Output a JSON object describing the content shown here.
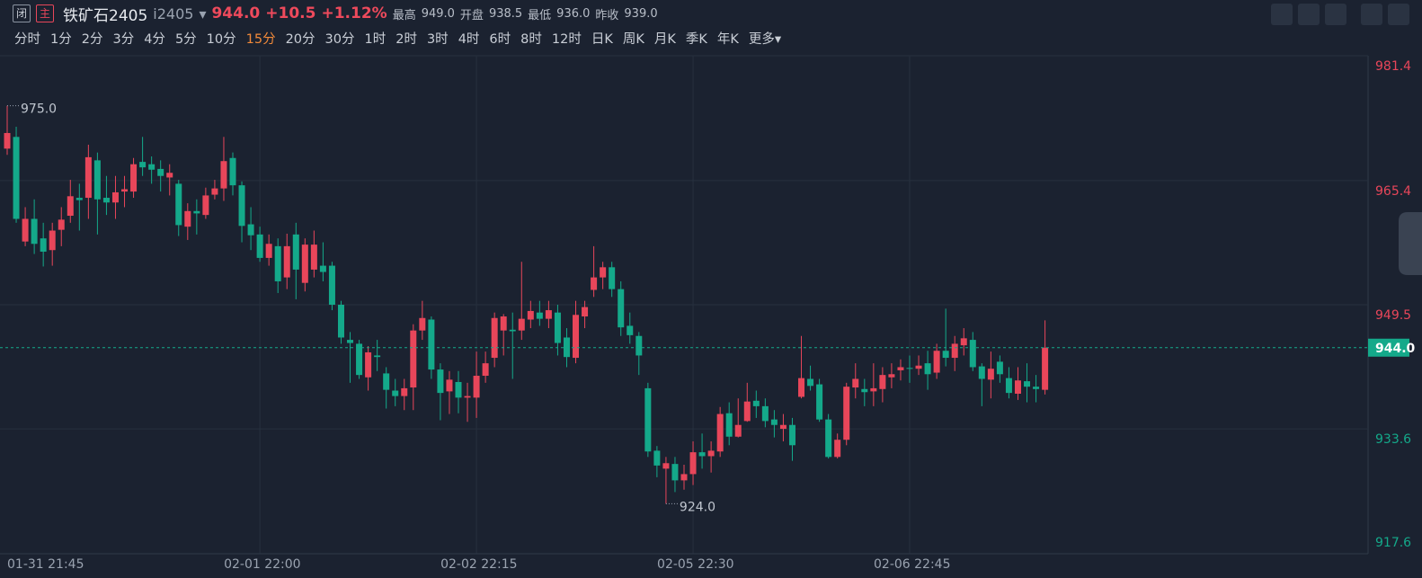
{
  "header": {
    "closed_tag": "闭",
    "main_tag": "主",
    "name": "铁矿石2405",
    "code": "i2405",
    "last": "944.0",
    "change": "+10.5",
    "change_pct": "+1.12%",
    "high_label": "最高",
    "high": "949.0",
    "open_label": "开盘",
    "open": "938.5",
    "low_label": "最低",
    "low": "936.0",
    "prev_label": "昨收",
    "prev": "939.0"
  },
  "periods": [
    "分时",
    "1分",
    "2分",
    "3分",
    "4分",
    "5分",
    "10分",
    "15分",
    "20分",
    "30分",
    "1时",
    "2时",
    "3时",
    "4时",
    "6时",
    "8时",
    "12时",
    "日K",
    "周K",
    "月K",
    "季K",
    "年K",
    "更多▾"
  ],
  "active_period": 7,
  "chart_data": {
    "type": "candlestick",
    "up_color": "#e8465a",
    "down_color": "#14a98a",
    "categories": [
      "01-31 21:45",
      null,
      null,
      null,
      null,
      null,
      null,
      null,
      null,
      null,
      null,
      null,
      null,
      null,
      null,
      null,
      null,
      null,
      null,
      null,
      null,
      null,
      null,
      null,
      null,
      null,
      null,
      null,
      "02-01 22:00",
      null,
      null,
      null,
      null,
      null,
      null,
      null,
      null,
      null,
      null,
      null,
      null,
      null,
      null,
      null,
      null,
      null,
      null,
      null,
      null,
      null,
      null,
      null,
      "02-02 22:15",
      null,
      null,
      null,
      null,
      null,
      null,
      null,
      null,
      null,
      null,
      null,
      null,
      null,
      null,
      null,
      null,
      null,
      null,
      null,
      null,
      null,
      null,
      null,
      "02-05 22:30",
      null,
      null,
      null,
      null,
      null,
      null,
      null,
      null,
      null,
      null,
      null,
      null,
      null,
      null,
      null,
      null,
      null,
      null,
      null,
      null,
      null,
      null,
      null,
      "02-06 22:45",
      null,
      null,
      null,
      null,
      null,
      null,
      null,
      null,
      null,
      null,
      null,
      null,
      null,
      null,
      null
    ],
    "open": [
      969.5,
      971.0,
      957.6,
      960.5,
      958.0,
      956.5,
      959.1,
      960.9,
      963.2,
      963.2,
      968.0,
      963.2,
      962.6,
      964.0,
      964.0,
      967.8,
      967.5,
      966.9,
      965.8,
      965.0,
      959.5,
      961.5,
      961.0,
      963.6,
      964.4,
      968.3,
      964.8,
      959.8,
      958.5,
      955.5,
      957.0,
      953.0,
      958.5,
      952.3,
      954.0,
      954.5,
      954.5,
      949.5,
      945.0,
      944.5,
      940.2,
      943.0,
      940.7,
      938.5,
      937.8,
      938.9,
      946.2,
      947.6,
      941.2,
      938.4,
      939.6,
      937.6,
      937.6,
      940.4,
      942.7,
      946.2,
      946.3,
      946.2,
      947.6,
      948.5,
      947.7,
      948.5,
      945.3,
      942.7,
      948.0,
      951.4,
      953.0,
      954.3,
      951.5,
      946.8,
      945.5,
      938.8,
      930.8,
      928.5,
      929.1,
      927.0,
      927.8,
      930.6,
      930.1,
      930.7,
      935.6,
      932.6,
      934.6,
      937.2,
      936.5,
      934.8,
      933.6,
      934.1,
      937.7,
      940.0,
      939.3,
      934.8,
      930.0,
      932.2,
      938.9,
      938.7,
      938.4,
      938.7,
      940.2,
      941.1,
      941.4,
      941.3,
      942.0,
      940.8,
      943.6,
      942.7,
      944.3,
      945.0,
      941.6,
      939.9,
      942.2,
      940.1,
      938.1,
      939.7,
      939.0,
      938.6
    ],
    "high": [
      975.0,
      972.3,
      962.0,
      963.0,
      960.0,
      960.0,
      962.0,
      965.5,
      965.0,
      970.0,
      969.0,
      966.0,
      966.0,
      966.0,
      968.3,
      971.0,
      968.5,
      968.0,
      967.5,
      965.5,
      962.5,
      963.0,
      964.5,
      965.5,
      971.0,
      969.0,
      965.3,
      962.0,
      959.5,
      958.5,
      958.0,
      958.6,
      960.0,
      958.0,
      959.0,
      957.5,
      955.0,
      950.0,
      946.0,
      945.0,
      944.2,
      945.0,
      941.5,
      940.0,
      940.0,
      947.0,
      950.0,
      948.0,
      942.0,
      941.0,
      941.0,
      939.5,
      943.5,
      943.5,
      948.5,
      948.3,
      948.5,
      955.0,
      950.0,
      950.0,
      950.0,
      949.5,
      946.5,
      950.0,
      950.0,
      957.0,
      955.0,
      955.0,
      952.5,
      948.5,
      946.0,
      939.5,
      931.4,
      930.0,
      930.0,
      929.0,
      932.0,
      933.0,
      932.0,
      936.4,
      937.0,
      937.5,
      939.5,
      938.5,
      937.5,
      936.0,
      935.5,
      935.0,
      945.5,
      941.7,
      940.0,
      935.5,
      933.0,
      939.5,
      942.0,
      940.0,
      942.0,
      941.5,
      942.0,
      942.5,
      943.0,
      943.0,
      943.6,
      944.5,
      949.0,
      945.5,
      946.5,
      946.0,
      942.0,
      943.5,
      943.0,
      941.5,
      941.5,
      942.0,
      940.5,
      947.5
    ],
    "low": [
      968.7,
      960.0,
      957.0,
      956.0,
      954.4,
      954.5,
      957.0,
      960.0,
      959.0,
      960.5,
      958.5,
      961.0,
      960.5,
      962.0,
      963.2,
      966.0,
      965.0,
      964.0,
      963.5,
      958.3,
      957.8,
      958.5,
      960.5,
      963.0,
      962.8,
      963.5,
      957.5,
      956.5,
      955.0,
      954.5,
      951.0,
      951.5,
      950.2,
      951.2,
      953.0,
      952.5,
      948.8,
      944.5,
      939.5,
      940.0,
      938.5,
      941.0,
      936.2,
      936.5,
      936.0,
      936.0,
      945.0,
      940.0,
      934.7,
      935.5,
      935.6,
      934.5,
      935.0,
      939.5,
      941.5,
      943.0,
      940.0,
      945.0,
      946.5,
      946.8,
      946.5,
      943.0,
      941.5,
      942.0,
      946.5,
      950.5,
      951.5,
      950.5,
      945.5,
      944.5,
      940.5,
      930.0,
      927.4,
      924.0,
      925.5,
      925.8,
      926.4,
      928.5,
      928.0,
      930.0,
      931.5,
      932.5,
      934.5,
      935.0,
      933.8,
      932.5,
      932.0,
      929.5,
      937.5,
      938.5,
      934.5,
      929.8,
      929.8,
      931.5,
      937.5,
      936.5,
      936.5,
      937.0,
      938.8,
      939.8,
      939.5,
      940.5,
      938.6,
      940.0,
      941.6,
      941.0,
      943.0,
      941.0,
      936.5,
      937.5,
      939.5,
      937.5,
      937.3,
      937.0,
      937.0,
      938.0
    ],
    "close": [
      971.5,
      960.5,
      960.5,
      957.3,
      956.3,
      959.0,
      960.4,
      963.4,
      962.9,
      968.4,
      963.0,
      962.6,
      963.9,
      964.3,
      967.5,
      967.1,
      966.8,
      966.0,
      966.4,
      959.7,
      961.5,
      961.2,
      963.5,
      964.4,
      967.9,
      964.8,
      959.6,
      958.4,
      955.5,
      957.3,
      952.5,
      957.0,
      954.0,
      957.2,
      957.2,
      953.7,
      949.5,
      945.3,
      944.6,
      940.5,
      943.4,
      942.8,
      938.6,
      937.8,
      938.8,
      946.2,
      947.8,
      941.2,
      938.2,
      939.9,
      937.6,
      937.8,
      940.4,
      942.0,
      947.8,
      948.0,
      946.1,
      947.7,
      948.7,
      947.7,
      948.8,
      944.6,
      942.8,
      948.2,
      949.2,
      953.0,
      954.3,
      951.5,
      946.6,
      945.6,
      943.0,
      930.7,
      928.9,
      929.2,
      927.0,
      927.8,
      930.6,
      930.1,
      930.8,
      935.5,
      932.6,
      934.1,
      937.1,
      936.5,
      934.6,
      934.1,
      934.1,
      931.5,
      940.1,
      939.1,
      934.8,
      930.0,
      932.2,
      939.0,
      940.0,
      938.3,
      938.8,
      940.5,
      940.6,
      941.5,
      941.3,
      941.7,
      940.6,
      943.6,
      942.7,
      944.5,
      945.2,
      941.5,
      940.0,
      941.3,
      940.6,
      938.2,
      939.8,
      939.0,
      938.7,
      944.0
    ],
    "ylim": [
      917.6,
      981.4
    ],
    "yticks": [
      917.6,
      933.6,
      949.5,
      965.4,
      981.4
    ],
    "grid": true,
    "last_price": {
      "value": 944.0,
      "label": "944.0"
    },
    "max_marker": {
      "value": 975.0,
      "label": "975.0"
    },
    "min_marker": {
      "value": 924.0,
      "label": "924.0"
    }
  }
}
